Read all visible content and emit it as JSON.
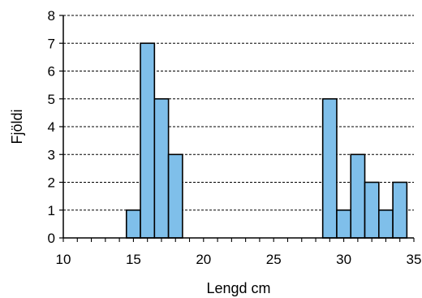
{
  "chart_data": {
    "type": "bar",
    "xlabel": "Lengd cm",
    "ylabel": "Fjöldi",
    "xlim": [
      10,
      35
    ],
    "ylim": [
      0,
      8
    ],
    "x_ticks": [
      10,
      15,
      20,
      25,
      30,
      35
    ],
    "y_ticks": [
      0,
      1,
      2,
      3,
      4,
      5,
      6,
      7,
      8
    ],
    "bin_width": 1,
    "bars": [
      {
        "x_start": 14.5,
        "x_end": 15.5,
        "value": 1
      },
      {
        "x_start": 15.5,
        "x_end": 16.5,
        "value": 7
      },
      {
        "x_start": 16.5,
        "x_end": 17.5,
        "value": 5
      },
      {
        "x_start": 17.5,
        "x_end": 18.5,
        "value": 3
      },
      {
        "x_start": 28.5,
        "x_end": 29.5,
        "value": 5
      },
      {
        "x_start": 29.5,
        "x_end": 30.5,
        "value": 1
      },
      {
        "x_start": 30.5,
        "x_end": 31.5,
        "value": 3
      },
      {
        "x_start": 31.5,
        "x_end": 32.5,
        "value": 2
      },
      {
        "x_start": 32.5,
        "x_end": 33.5,
        "value": 1
      },
      {
        "x_start": 33.5,
        "x_end": 34.5,
        "value": 2
      }
    ],
    "grid": "horizontal-dashed",
    "colors": {
      "bar_fill": "#7FBFEA",
      "bar_stroke": "#000000",
      "grid": "#000000"
    }
  }
}
